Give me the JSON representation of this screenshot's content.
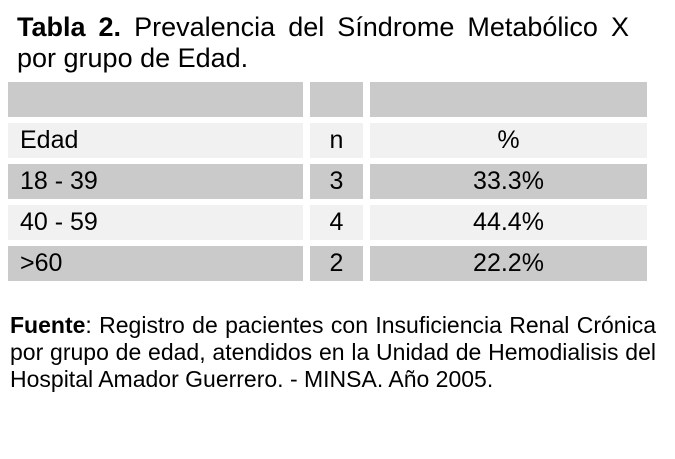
{
  "title": {
    "prefix": "Tabla 2.",
    "line1_rest": "Prevalencia del Síndrome Metabólico X",
    "line2": "por grupo de Edad."
  },
  "table": {
    "headers": {
      "edad": "Edad",
      "n": "n",
      "pct": "%"
    },
    "rows": [
      {
        "edad": "18 - 39",
        "n": "3",
        "pct": "33.3%"
      },
      {
        "edad": "40 - 59",
        "n": "4",
        "pct": "44.4%"
      },
      {
        "edad": ">60",
        "n": "2",
        "pct": "22.2%"
      }
    ]
  },
  "source_note": {
    "label": "Fuente",
    "line1_rest": ": Registro de pacientes con Insuficiencia Renal Crónica",
    "line2": "por grupo de edad, atendidos en la Unidad de Hemodialisis del",
    "line3": "Hospital Amador Guerrero. - MINSA. Año 2005."
  },
  "colors": {
    "row_dark": "#cacaca",
    "row_light": "#f1f1f1",
    "text": "#000000",
    "background": "#ffffff"
  }
}
